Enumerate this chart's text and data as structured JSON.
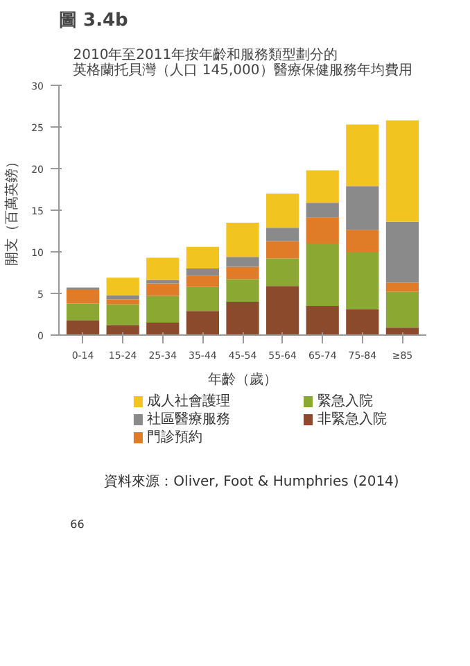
{
  "chart_data": {
    "type": "bar",
    "stacked": true,
    "title": "2010年至2011年按年齡和服務類型劃分的英格蘭托貝灣（人口 145,000）醫療保健服務年均費用",
    "subtitle": "圖 3.4b",
    "xlabel": "年齡（歲）",
    "ylabel": "開支（百萬英鎊）",
    "categories": [
      "0-14",
      "15-24",
      "25-34",
      "35-44",
      "45-54",
      "55-64",
      "65-74",
      "75-84",
      "≥85"
    ],
    "series": [
      {
        "name": "非緊急入院",
        "color": "#8b4a2b",
        "values": [
          1.8,
          1.2,
          1.5,
          2.9,
          4.0,
          5.9,
          3.5,
          3.1,
          0.9
        ]
      },
      {
        "name": "緊急入院",
        "color": "#8aa832",
        "values": [
          2.0,
          2.5,
          3.2,
          2.9,
          2.7,
          3.3,
          7.5,
          6.9,
          4.3
        ]
      },
      {
        "name": "門診預約",
        "color": "#e07b28",
        "values": [
          1.7,
          0.6,
          1.5,
          1.3,
          1.5,
          2.1,
          3.1,
          2.6,
          1.1
        ]
      },
      {
        "name": "社區醫療服務",
        "color": "#8a8a8a",
        "values": [
          0.2,
          0.5,
          0.4,
          0.9,
          1.2,
          1.6,
          1.8,
          5.3,
          7.3
        ]
      },
      {
        "name": "成人社會護理",
        "color": "#f2c41f",
        "values": [
          0,
          2.1,
          2.7,
          2.6,
          4.1,
          4.1,
          3.9,
          7.4,
          12.2
        ]
      }
    ],
    "ylim": [
      0,
      30
    ],
    "yticks": [
      0,
      5,
      10,
      15,
      20,
      25,
      30
    ],
    "grid": false,
    "legend": "bottom",
    "annotations": [
      "資料來源：Oliver, Foot & Humphries (2014)",
      "66"
    ]
  }
}
